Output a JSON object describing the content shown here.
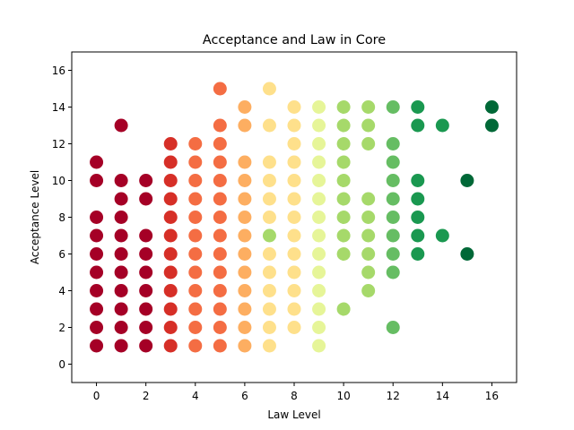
{
  "chart_data": {
    "type": "scatter",
    "title": "Acceptance and Law in Core",
    "xlabel": "Law Level",
    "ylabel": "Acceptance Level",
    "xlim": [
      -1,
      17
    ],
    "ylim": [
      -1,
      17
    ],
    "xticks": [
      0,
      2,
      4,
      6,
      8,
      10,
      12,
      14,
      16
    ],
    "yticks": [
      0,
      2,
      4,
      6,
      8,
      10,
      12,
      14,
      16
    ],
    "grid": false,
    "colormap": "RdYlGn",
    "color_by": "Law Level",
    "column_colors": {
      "0": "#a50026",
      "1": "#a50026",
      "2": "#a50026",
      "3": "#d62f27",
      "4": "#f46d43",
      "5": "#f46d43",
      "6": "#fdae61",
      "7": "#fee08b",
      "8": "#fee08b",
      "9": "#e6f598",
      "10": "#a6d96a",
      "11": "#a6d96a",
      "12": "#66bd63",
      "13": "#1a9850",
      "14": "#1a9850",
      "15": "#006837",
      "16": "#006837"
    },
    "points_by_x": [
      {
        "x": 0,
        "y": [
          1,
          2,
          3,
          4,
          5,
          6,
          7,
          8,
          10,
          11
        ]
      },
      {
        "x": 1,
        "y": [
          1,
          2,
          3,
          4,
          5,
          6,
          7,
          8,
          9,
          10,
          13
        ]
      },
      {
        "x": 2,
        "y": [
          1,
          2,
          3,
          4,
          5,
          6,
          7,
          9,
          10
        ]
      },
      {
        "x": 3,
        "y": [
          1,
          2,
          3,
          4,
          5,
          6,
          7,
          8,
          9,
          10,
          11,
          12
        ]
      },
      {
        "x": 4,
        "y": [
          1,
          2,
          3,
          4,
          5,
          6,
          7,
          8,
          9,
          10,
          11,
          12
        ]
      },
      {
        "x": 5,
        "y": [
          1,
          2,
          3,
          4,
          5,
          6,
          7,
          8,
          9,
          10,
          11,
          12,
          13,
          15
        ]
      },
      {
        "x": 6,
        "y": [
          1,
          2,
          3,
          4,
          5,
          6,
          7,
          8,
          9,
          10,
          11,
          13,
          14
        ]
      },
      {
        "x": 7,
        "y": [
          1,
          2,
          3,
          4,
          5,
          6,
          7,
          8,
          9,
          10,
          11,
          13,
          15
        ]
      },
      {
        "x": 8,
        "y": [
          2,
          3,
          4,
          5,
          6,
          7,
          8,
          9,
          10,
          11,
          12,
          13,
          14
        ]
      },
      {
        "x": 9,
        "y": [
          1,
          2,
          3,
          4,
          5,
          6,
          7,
          8,
          9,
          10,
          11,
          12,
          13,
          14
        ]
      },
      {
        "x": 10,
        "y": [
          3,
          6,
          7,
          8,
          9,
          10,
          11,
          12,
          13,
          14
        ]
      },
      {
        "x": 11,
        "y": [
          4,
          5,
          6,
          7,
          8,
          9,
          12,
          13,
          14
        ]
      },
      {
        "x": 12,
        "y": [
          2,
          5,
          6,
          7,
          8,
          9,
          10,
          11,
          12,
          14
        ]
      },
      {
        "x": 13,
        "y": [
          6,
          7,
          8,
          9,
          10,
          13,
          14
        ]
      },
      {
        "x": 14,
        "y": [
          7,
          13
        ]
      },
      {
        "x": 15,
        "y": [
          6,
          10
        ]
      },
      {
        "x": 16,
        "y": [
          13,
          14
        ]
      }
    ],
    "special_colors": [
      {
        "x": 7,
        "y": 7,
        "color": "#a6d96a"
      }
    ]
  }
}
